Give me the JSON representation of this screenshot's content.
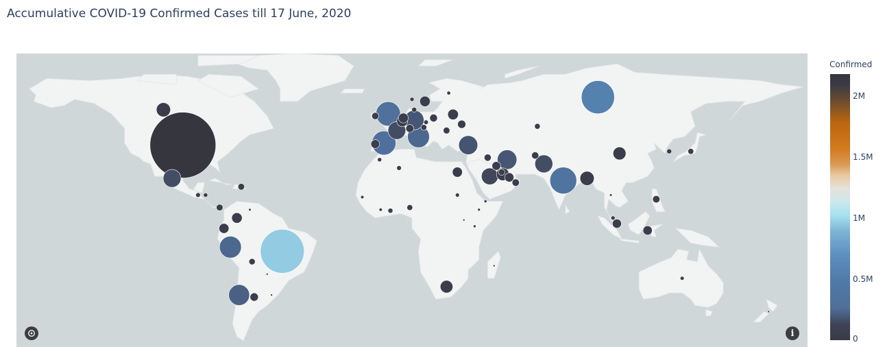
{
  "title": "Accumulative COVID-19 Confirmed Cases till 17 June, 2020",
  "colorbar": {
    "title": "Confirmed",
    "ticks": [
      {
        "label": "2M",
        "value": 2000000
      },
      {
        "label": "1.5M",
        "value": 1500000
      },
      {
        "label": "1M",
        "value": 1000000
      },
      {
        "label": "0.5M",
        "value": 500000
      },
      {
        "label": "0",
        "value": 0
      }
    ],
    "max": 2180000
  },
  "icons": {
    "logo": "plotly-logo-icon",
    "info": "info-icon"
  },
  "info_glyph": "i",
  "chart_data": {
    "type": "scatter",
    "projection": "natural-earth",
    "size_field": "Confirmed",
    "color_field": "Confirmed",
    "points": [
      {
        "lat": 39,
        "lon": -97,
        "confirmed": 2180000
      },
      {
        "lat": -12,
        "lon": -51,
        "confirmed": 960000
      },
      {
        "lat": 62,
        "lon": 95,
        "confirmed": 550000
      },
      {
        "lat": 22,
        "lon": 79,
        "confirmed": 360000
      },
      {
        "lat": 54,
        "lon": -2,
        "confirmed": 300000
      },
      {
        "lat": 40,
        "lon": -4,
        "confirmed": 290000
      },
      {
        "lat": 43,
        "lon": 12,
        "confirmed": 240000
      },
      {
        "lat": -10,
        "lon": -75,
        "confirmed": 240000
      },
      {
        "lat": 51,
        "lon": 10,
        "confirmed": 190000
      },
      {
        "lat": 39,
        "lon": 35,
        "confirmed": 180000
      },
      {
        "lat": -33,
        "lon": -71,
        "confirmed": 220000
      },
      {
        "lat": 23,
        "lon": -102,
        "confirmed": 160000
      },
      {
        "lat": 32,
        "lon": 53,
        "confirmed": 190000
      },
      {
        "lat": 30,
        "lon": 70,
        "confirmed": 160000
      },
      {
        "lat": 24,
        "lon": 45,
        "confirmed": 140000
      },
      {
        "lat": 56,
        "lon": -106,
        "confirmed": 100000
      },
      {
        "lat": 46,
        "lon": 2,
        "confirmed": 158000
      },
      {
        "lat": 23,
        "lon": 90,
        "confirmed": 100000
      },
      {
        "lat": 35,
        "lon": 105,
        "confirmed": 84000
      },
      {
        "lat": 4,
        "lon": -72,
        "confirmed": 55000
      },
      {
        "lat": -1,
        "lon": -78,
        "confirmed": 49000
      },
      {
        "lat": 9,
        "lon": -80,
        "confirmed": 22000
      },
      {
        "lat": 8,
        "lon": -66,
        "confirmed": 3000
      },
      {
        "lat": 60,
        "lon": 15,
        "confirmed": 55000
      },
      {
        "lat": 52,
        "lon": 5,
        "confirmed": 49000
      },
      {
        "lat": 50.5,
        "lon": 4.5,
        "confirmed": 60000
      },
      {
        "lat": 52,
        "lon": 19,
        "confirmed": 30000
      },
      {
        "lat": 53,
        "lon": -8,
        "confirmed": 25000
      },
      {
        "lat": 39.5,
        "lon": -8,
        "confirmed": 38000
      },
      {
        "lat": 25,
        "lon": 51,
        "confirmed": 80000
      },
      {
        "lat": 26,
        "lon": 30,
        "confirmed": 50000
      },
      {
        "lat": 33,
        "lon": 44,
        "confirmed": 25000
      },
      {
        "lat": -29,
        "lon": 25,
        "confirmed": 80000
      },
      {
        "lat": 9,
        "lon": 8,
        "confirmed": 17000
      },
      {
        "lat": -2,
        "lon": 118,
        "confirmed": 42000
      },
      {
        "lat": 13,
        "lon": 122,
        "confirmed": 27000
      },
      {
        "lat": 4,
        "lon": 102,
        "confirmed": 8500
      },
      {
        "lat": 1.3,
        "lon": 103.8,
        "confirmed": 41000
      },
      {
        "lat": 48,
        "lon": 67,
        "confirmed": 16000
      },
      {
        "lat": 49,
        "lon": 32,
        "confirmed": 33000
      },
      {
        "lat": 53.7,
        "lon": 28,
        "confirmed": 56000
      },
      {
        "lat": 47,
        "lon": 8,
        "confirmed": 31000
      },
      {
        "lat": 47.5,
        "lon": 14.5,
        "confirmed": 17000
      },
      {
        "lat": 56,
        "lon": 10,
        "confirmed": 12000
      },
      {
        "lat": 64,
        "lon": 26,
        "confirmed": 7000
      },
      {
        "lat": 61,
        "lon": 9,
        "confirmed": 8700
      },
      {
        "lat": 29,
        "lon": 48,
        "confirmed": 38000
      },
      {
        "lat": 23.5,
        "lon": 54,
        "confirmed": 43000
      },
      {
        "lat": 21,
        "lon": 57,
        "confirmed": 27000
      },
      {
        "lat": 26,
        "lon": 50.5,
        "confirmed": 20000
      },
      {
        "lat": 46,
        "lon": 25,
        "confirmed": 22000
      },
      {
        "lat": 50,
        "lon": 15.5,
        "confirmed": 10000
      },
      {
        "lat": 34,
        "lon": 66,
        "confirmed": 26000
      },
      {
        "lat": 15,
        "lon": -90,
        "confirmed": 11000
      },
      {
        "lat": 15,
        "lon": -86.5,
        "confirmed": 9000
      },
      {
        "lat": 19,
        "lon": -70,
        "confirmed": 22000
      },
      {
        "lat": -17,
        "lon": -65,
        "confirmed": 20000
      },
      {
        "lat": -23,
        "lon": -58,
        "confirmed": 1300
      },
      {
        "lat": -34,
        "lon": -64,
        "confirmed": 34000
      },
      {
        "lat": -33,
        "lon": -56,
        "confirmed": 900
      },
      {
        "lat": 28,
        "lon": 3,
        "confirmed": 11000
      },
      {
        "lat": 32,
        "lon": -6,
        "confirmed": 9000
      },
      {
        "lat": 15,
        "lon": 30,
        "confirmed": 8000
      },
      {
        "lat": 7.5,
        "lon": -1,
        "confirmed": 12000
      },
      {
        "lat": 8,
        "lon": 40,
        "confirmed": 3500
      },
      {
        "lat": 36,
        "lon": 128,
        "confirmed": 12000
      },
      {
        "lat": 36,
        "lon": 138,
        "confirmed": 17000
      },
      {
        "lat": 15,
        "lon": 101,
        "confirmed": 3100
      },
      {
        "lat": 14,
        "lon": -14,
        "confirmed": 5200
      },
      {
        "lat": 8,
        "lon": -5.5,
        "confirmed": 5000
      },
      {
        "lat": 12,
        "lon": 43,
        "confirmed": 4000
      },
      {
        "lat": 0,
        "lon": 38,
        "confirmed": 3800
      },
      {
        "lat": -19,
        "lon": 47,
        "confirmed": 1200
      },
      {
        "lat": 3,
        "lon": 33,
        "confirmed": 700
      },
      {
        "lat": -25,
        "lon": 134,
        "confirmed": 7400
      },
      {
        "lat": -41,
        "lon": 174,
        "confirmed": 1500
      }
    ]
  }
}
